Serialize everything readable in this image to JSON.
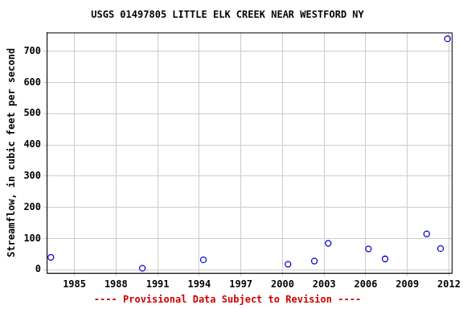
{
  "chart_data": {
    "type": "scatter",
    "title": "USGS 01497805 LITTLE ELK CREEK NEAR WESTFORD NY",
    "subtitle": "---- Provisional Data Subject to Revision ----",
    "y_label": "Streamflow, in cubic feet per second",
    "x": [
      1983.3,
      1989.9,
      1994.3,
      2000.4,
      2002.3,
      2003.3,
      2006.2,
      2007.4,
      2010.4,
      2011.4,
      2011.9
    ],
    "values": [
      40,
      5,
      32,
      18,
      28,
      85,
      67,
      35,
      115,
      68,
      740
    ],
    "color": "#0000cc",
    "marker": "circle",
    "xlim": [
      1983,
      2012.2
    ],
    "xticks": [
      1985,
      1988,
      1991,
      1994,
      1997,
      2000,
      2003,
      2006,
      2009,
      2012
    ],
    "ylim": [
      -10,
      760
    ],
    "yticks": [
      0,
      100,
      200,
      300,
      400,
      500,
      600,
      700
    ],
    "grid": true
  }
}
